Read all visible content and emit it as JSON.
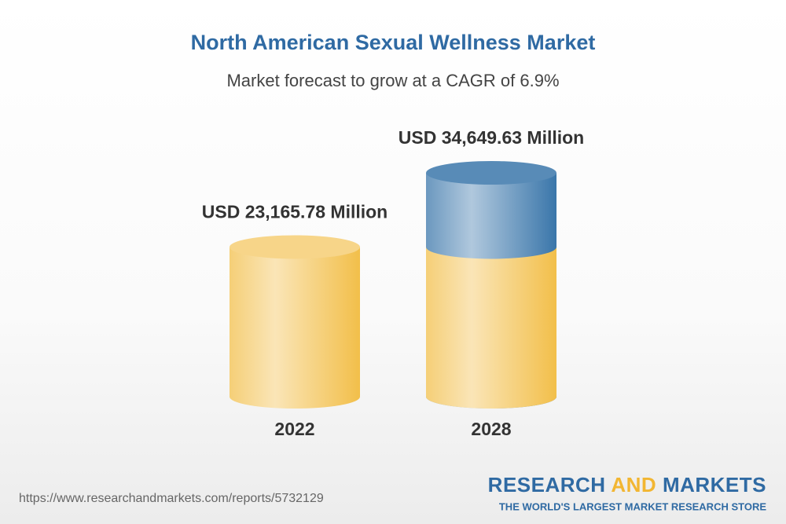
{
  "chart_data": {
    "type": "cylinder",
    "title": "North American Sexual Wellness Market",
    "subtitle": "Market forecast to grow at a CAGR of 6.9%",
    "categories": [
      "2022",
      "2028"
    ],
    "values": [
      23165.78,
      34649.63
    ],
    "value_labels": [
      "USD 23,165.78 Million",
      "USD 34,649.63 Million"
    ],
    "color": "#f2bf4a",
    "highlight_color": "#3a76aa"
  },
  "source_url": "https://www.researchandmarkets.com/reports/5732129",
  "brand": {
    "parts": [
      "RESEARCH",
      "AND",
      "MARKETS"
    ],
    "tagline": "THE WORLD'S LARGEST MARKET RESEARCH STORE"
  }
}
